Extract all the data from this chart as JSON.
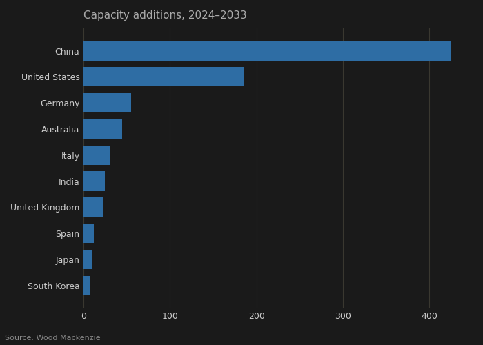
{
  "title": "Capacity additions, 2024–2033",
  "source": "Source: Wood Mackenzie",
  "categories": [
    "China",
    "United States",
    "Germany",
    "Australia",
    "Italy",
    "India",
    "United Kingdom",
    "Spain",
    "Japan",
    "South Korea"
  ],
  "values": [
    425,
    185,
    55,
    45,
    30,
    25,
    22,
    12,
    10,
    8
  ],
  "bar_color": "#2E6DA4",
  "background_color": "#1a1a1a",
  "text_color": "#cccccc",
  "title_color": "#aaaaaa",
  "source_color": "#888888",
  "xlim": [
    0,
    450
  ],
  "xticks": [
    0,
    100,
    200,
    300,
    400
  ],
  "grid_color": "#3a3830",
  "title_fontsize": 11,
  "label_fontsize": 9,
  "tick_fontsize": 9,
  "source_fontsize": 8
}
